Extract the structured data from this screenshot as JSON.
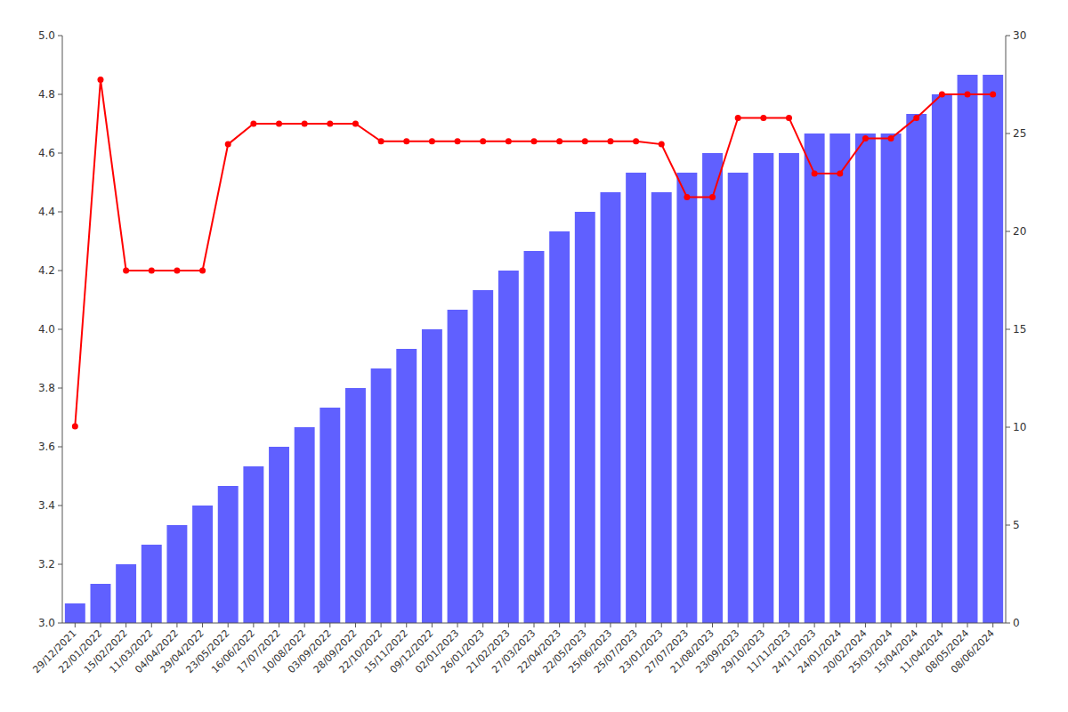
{
  "chart_data": {
    "type": "bar",
    "categories": [
      "29/12/2021",
      "22/01/2022",
      "15/02/2022",
      "11/03/2022",
      "04/04/2022",
      "29/04/2022",
      "23/05/2022",
      "16/06/2022",
      "17/07/2022",
      "10/08/2022",
      "03/09/2022",
      "28/09/2022",
      "22/10/2022",
      "15/11/2022",
      "09/12/2022",
      "02/01/2023",
      "26/01/2023",
      "21/02/2023",
      "27/03/2023",
      "22/04/2023",
      "22/05/2023",
      "25/06/2023",
      "25/07/2023",
      "23/01/2023",
      "27/07/2023",
      "21/08/2023",
      "23/09/2023",
      "29/10/2023",
      "11/11/2023",
      "24/11/2023",
      "24/01/2024",
      "20/02/2024",
      "25/03/2024",
      "15/04/2024",
      "11/04/2024",
      "08/05/2024",
      "08/06/2024"
    ],
    "series": [
      {
        "type": "bar",
        "axis": "y2",
        "color": "#4444ff",
        "values": [
          1,
          2,
          3,
          4,
          5,
          6,
          7,
          8,
          9,
          10,
          11,
          12,
          13,
          14,
          15,
          16,
          17,
          18,
          19,
          20,
          21,
          22,
          23,
          22,
          23,
          24,
          23,
          24,
          24,
          25,
          25,
          25,
          25,
          26,
          27,
          28,
          28
        ]
      },
      {
        "type": "line",
        "color": "#ff0000",
        "marker": "circle",
        "values": [
          3.67,
          4.85,
          4.2,
          4.2,
          4.2,
          4.2,
          4.63,
          4.7,
          4.7,
          4.7,
          4.7,
          4.7,
          4.64,
          4.64,
          4.64,
          4.64,
          4.64,
          4.64,
          4.64,
          4.64,
          4.64,
          4.64,
          4.64,
          4.63,
          4.45,
          4.45,
          4.72,
          4.72,
          4.72,
          4.53,
          4.53,
          4.65,
          4.65,
          4.72,
          4.8,
          4.8,
          4.8
        ]
      }
    ],
    "ylim": [
      3.0,
      5.0
    ],
    "yticks": [
      {
        "value": 3.0,
        "label": "3.0"
      },
      3.2,
      3.4,
      3.6,
      3.8,
      {
        "value": 4.0,
        "label": "4.0"
      },
      4.2,
      4.4,
      4.6,
      4.8,
      {
        "value": 5.0,
        "label": "5.0"
      }
    ],
    "y2lim": [
      0,
      30
    ],
    "y2ticks": [
      0,
      5,
      10,
      15,
      20,
      25,
      30
    ],
    "grid": false
  }
}
